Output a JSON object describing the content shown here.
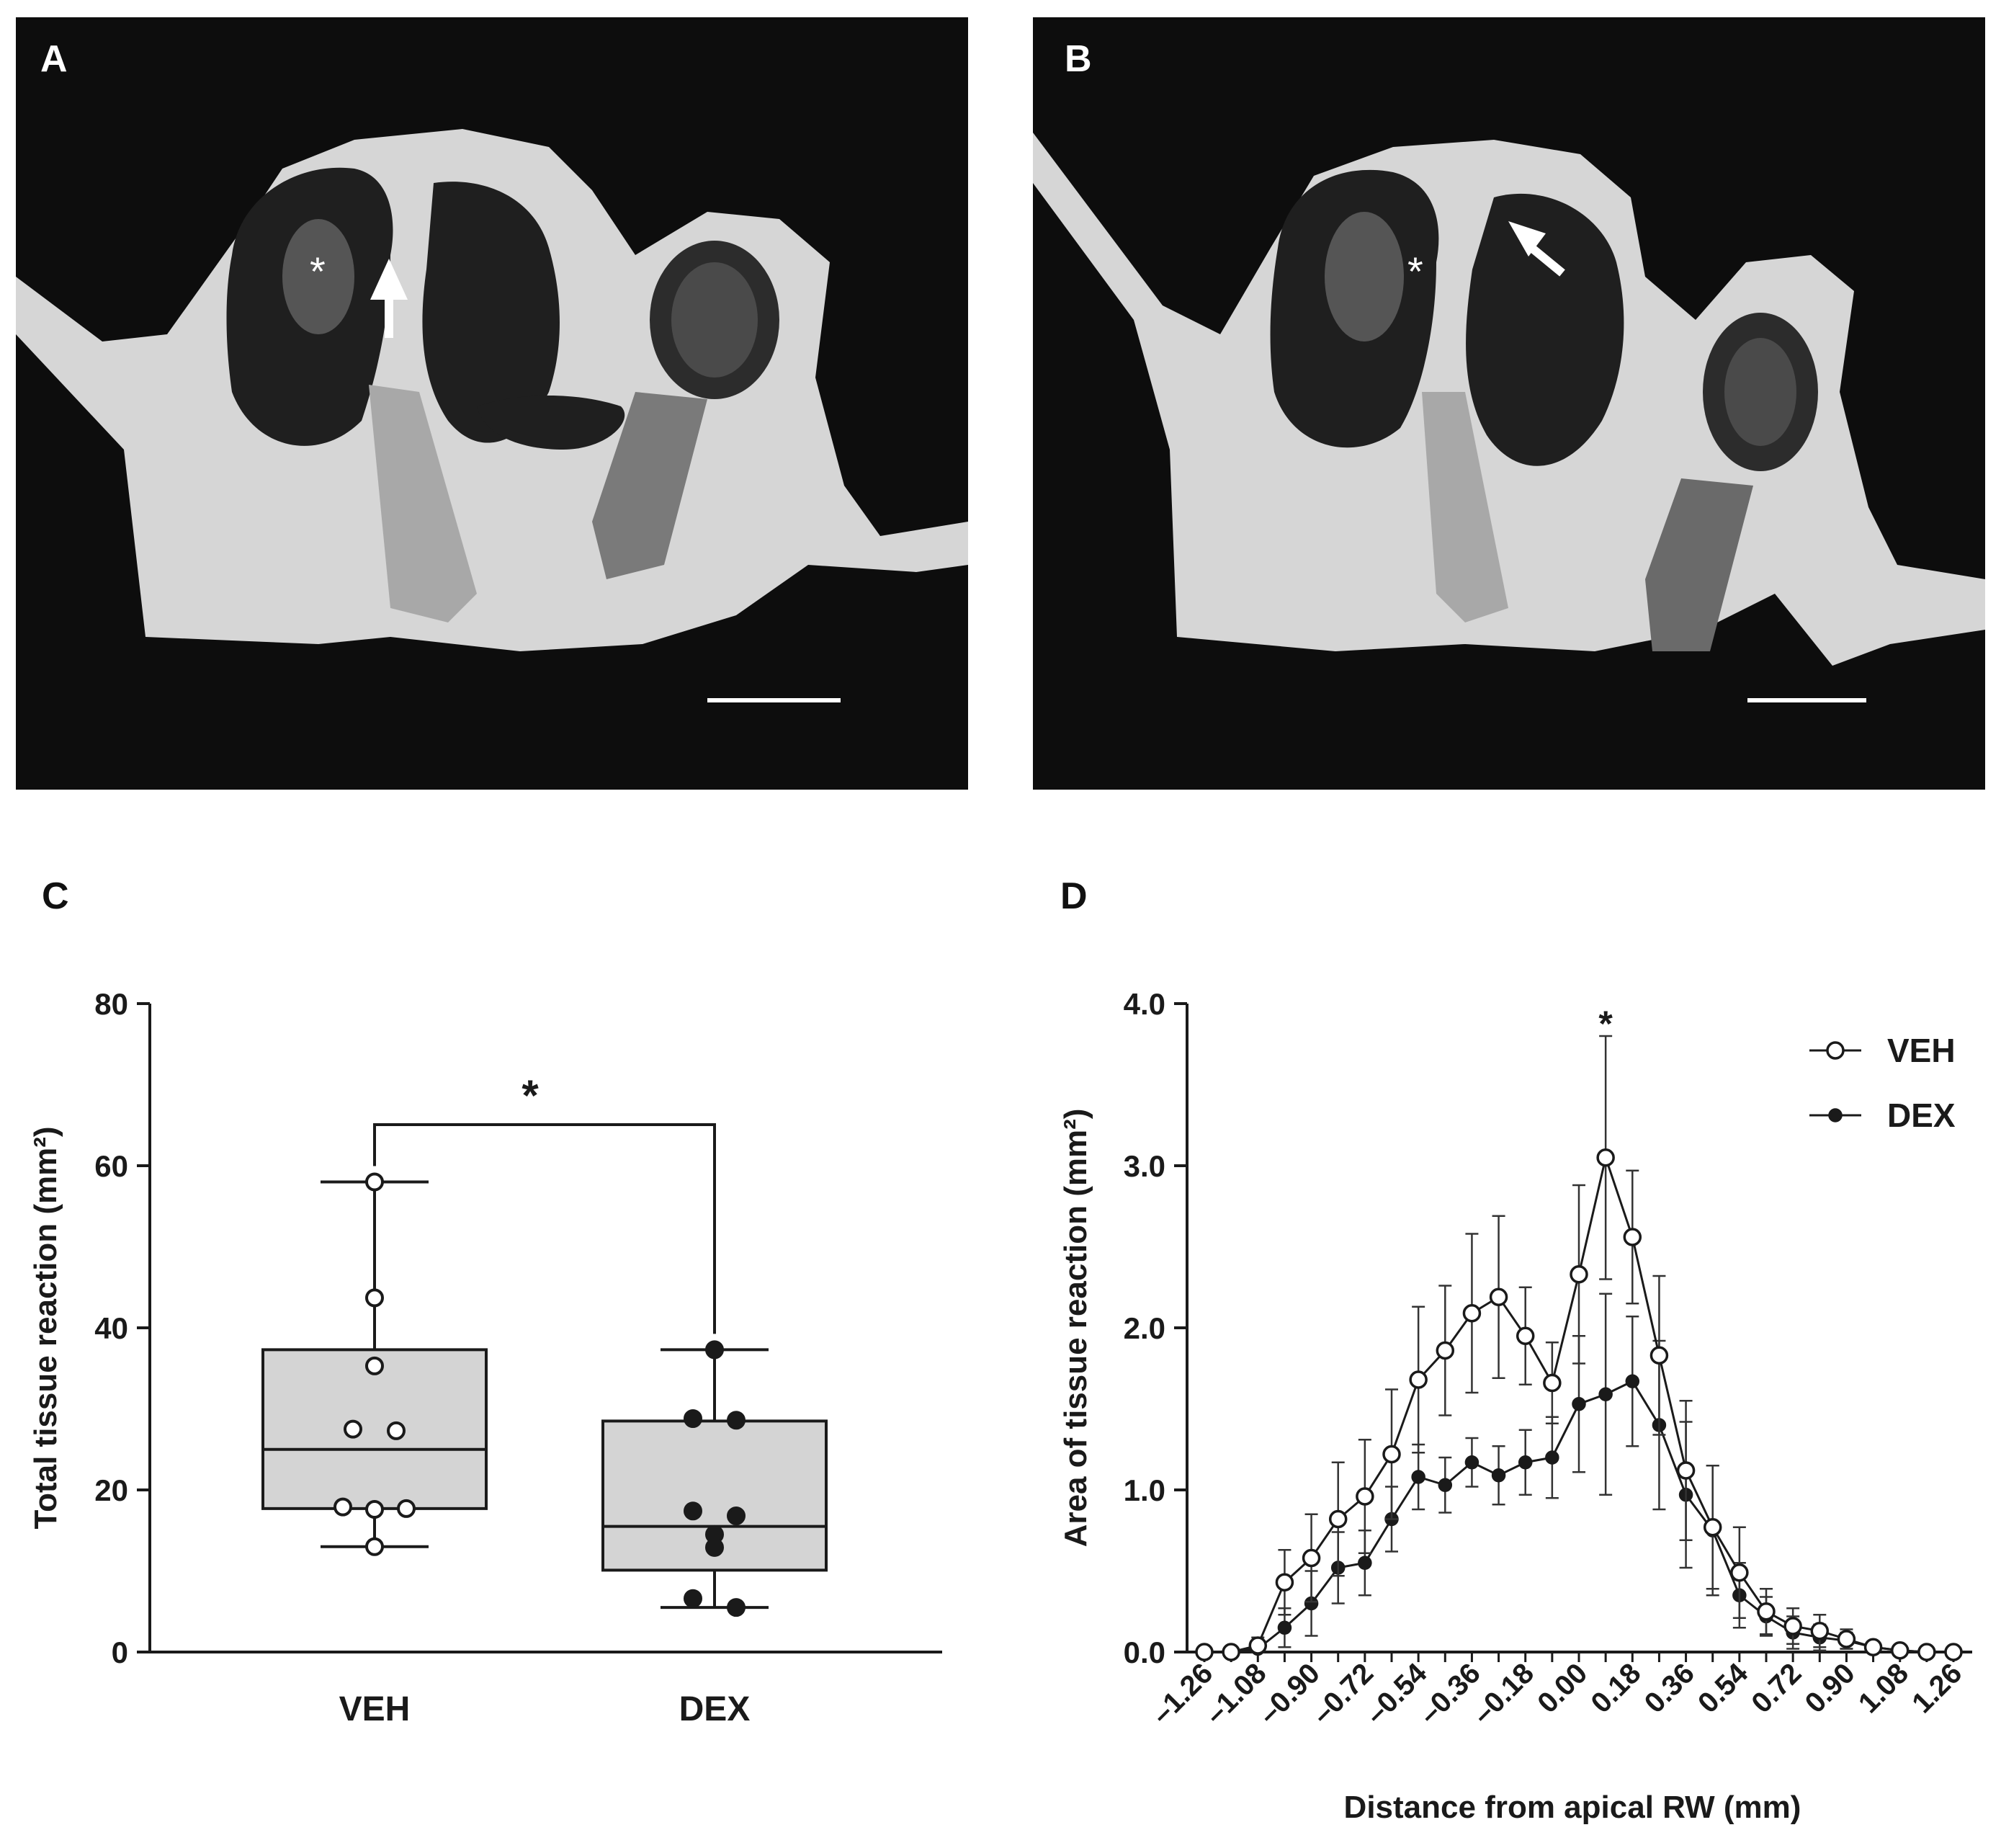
{
  "panels": {
    "a_label": "A",
    "b_label": "B",
    "c_label": "C",
    "d_label": "D",
    "image_marker": "*"
  },
  "chart_data": [
    {
      "type": "box",
      "panel": "C",
      "ylabel": "Total tissue reaction (mm²)",
      "xlabel": "",
      "ylim": [
        0,
        80
      ],
      "yticks": [
        0,
        20,
        40,
        60,
        80
      ],
      "categories": [
        "VEH",
        "DEX"
      ],
      "significance": {
        "label": "*",
        "between": [
          "VEH",
          "DEX"
        ]
      },
      "boxes": [
        {
          "name": "VEH",
          "min": 13,
          "q1": 17.7,
          "median": 25,
          "q3": 37.3,
          "max": 58,
          "points": [
            58,
            43.7,
            35.3,
            27.5,
            27.3,
            17.9,
            17.6,
            17.7,
            13
          ],
          "marker": "open",
          "fill": "#d4d4d4"
        },
        {
          "name": "DEX",
          "min": 5.5,
          "q1": 10.1,
          "median": 15.5,
          "q3": 28.5,
          "max": 37.3,
          "points": [
            37.3,
            28.8,
            28.6,
            17.4,
            16.8,
            14.5,
            12.9,
            6.6,
            5.5
          ],
          "marker": "filled",
          "fill": "#d4d4d4"
        }
      ],
      "grid": false
    },
    {
      "type": "line",
      "panel": "D",
      "ylabel": "Area of tissue reaction (mm²)",
      "xlabel": "Distance from apical RW (mm)",
      "ylim": [
        0,
        4
      ],
      "yticks": [
        "0.0",
        "1.0",
        "2.0",
        "3.0",
        "4.0"
      ],
      "xlim": [
        -1.26,
        1.26
      ],
      "xticks": [
        "-1.26",
        "-1.08",
        "-0.90",
        "-0.72",
        "-0.54",
        "-0.36",
        "-0.18",
        "0.00",
        "0.18",
        "0.36",
        "0.54",
        "0.72",
        "0.90",
        "1.08",
        "1.26"
      ],
      "x": [
        -1.26,
        -1.17,
        -1.08,
        -0.99,
        -0.9,
        -0.81,
        -0.72,
        -0.63,
        -0.54,
        -0.45,
        -0.36,
        -0.27,
        -0.18,
        -0.09,
        0.0,
        0.09,
        0.18,
        0.27,
        0.36,
        0.45,
        0.54,
        0.63,
        0.72,
        0.81,
        0.9,
        0.99,
        1.08,
        1.17,
        1.26
      ],
      "series": [
        {
          "name": "VEH",
          "marker": "open",
          "values": [
            0.0,
            0.0,
            0.04,
            0.43,
            0.58,
            0.82,
            0.96,
            1.22,
            1.68,
            1.86,
            2.09,
            2.19,
            1.95,
            1.66,
            2.33,
            3.05,
            2.56,
            1.83,
            1.12,
            0.77,
            0.49,
            0.25,
            0.16,
            0.13,
            0.08,
            0.03,
            0.01,
            0.0,
            0.0
          ],
          "errors": [
            0.0,
            0.0,
            0.05,
            0.2,
            0.27,
            0.35,
            0.35,
            0.4,
            0.45,
            0.4,
            0.49,
            0.5,
            0.3,
            0.25,
            0.55,
            0.75,
            0.41,
            0.49,
            0.43,
            0.38,
            0.28,
            0.14,
            0.11,
            0.1,
            0.06,
            0.03,
            0.01,
            0.0,
            0.0
          ]
        },
        {
          "name": "DEX",
          "marker": "filled",
          "values": [
            0.0,
            0.0,
            0.02,
            0.15,
            0.3,
            0.52,
            0.55,
            0.82,
            1.08,
            1.03,
            1.17,
            1.09,
            1.17,
            1.2,
            1.53,
            1.59,
            1.67,
            1.4,
            0.97,
            0.75,
            0.35,
            0.22,
            0.12,
            0.09,
            0.07,
            0.03,
            0.01,
            0.0,
            0.0
          ],
          "errors": [
            0.0,
            0.0,
            0.03,
            0.12,
            0.2,
            0.22,
            0.2,
            0.2,
            0.2,
            0.17,
            0.15,
            0.18,
            0.2,
            0.25,
            0.42,
            0.62,
            0.4,
            0.52,
            0.45,
            0.4,
            0.2,
            0.12,
            0.1,
            0.08,
            0.05,
            0.02,
            0.01,
            0.0,
            0.0
          ]
        }
      ],
      "annotations": [
        {
          "label": "*",
          "x": 0.09
        }
      ],
      "legend": "top-right",
      "grid": false
    }
  ]
}
